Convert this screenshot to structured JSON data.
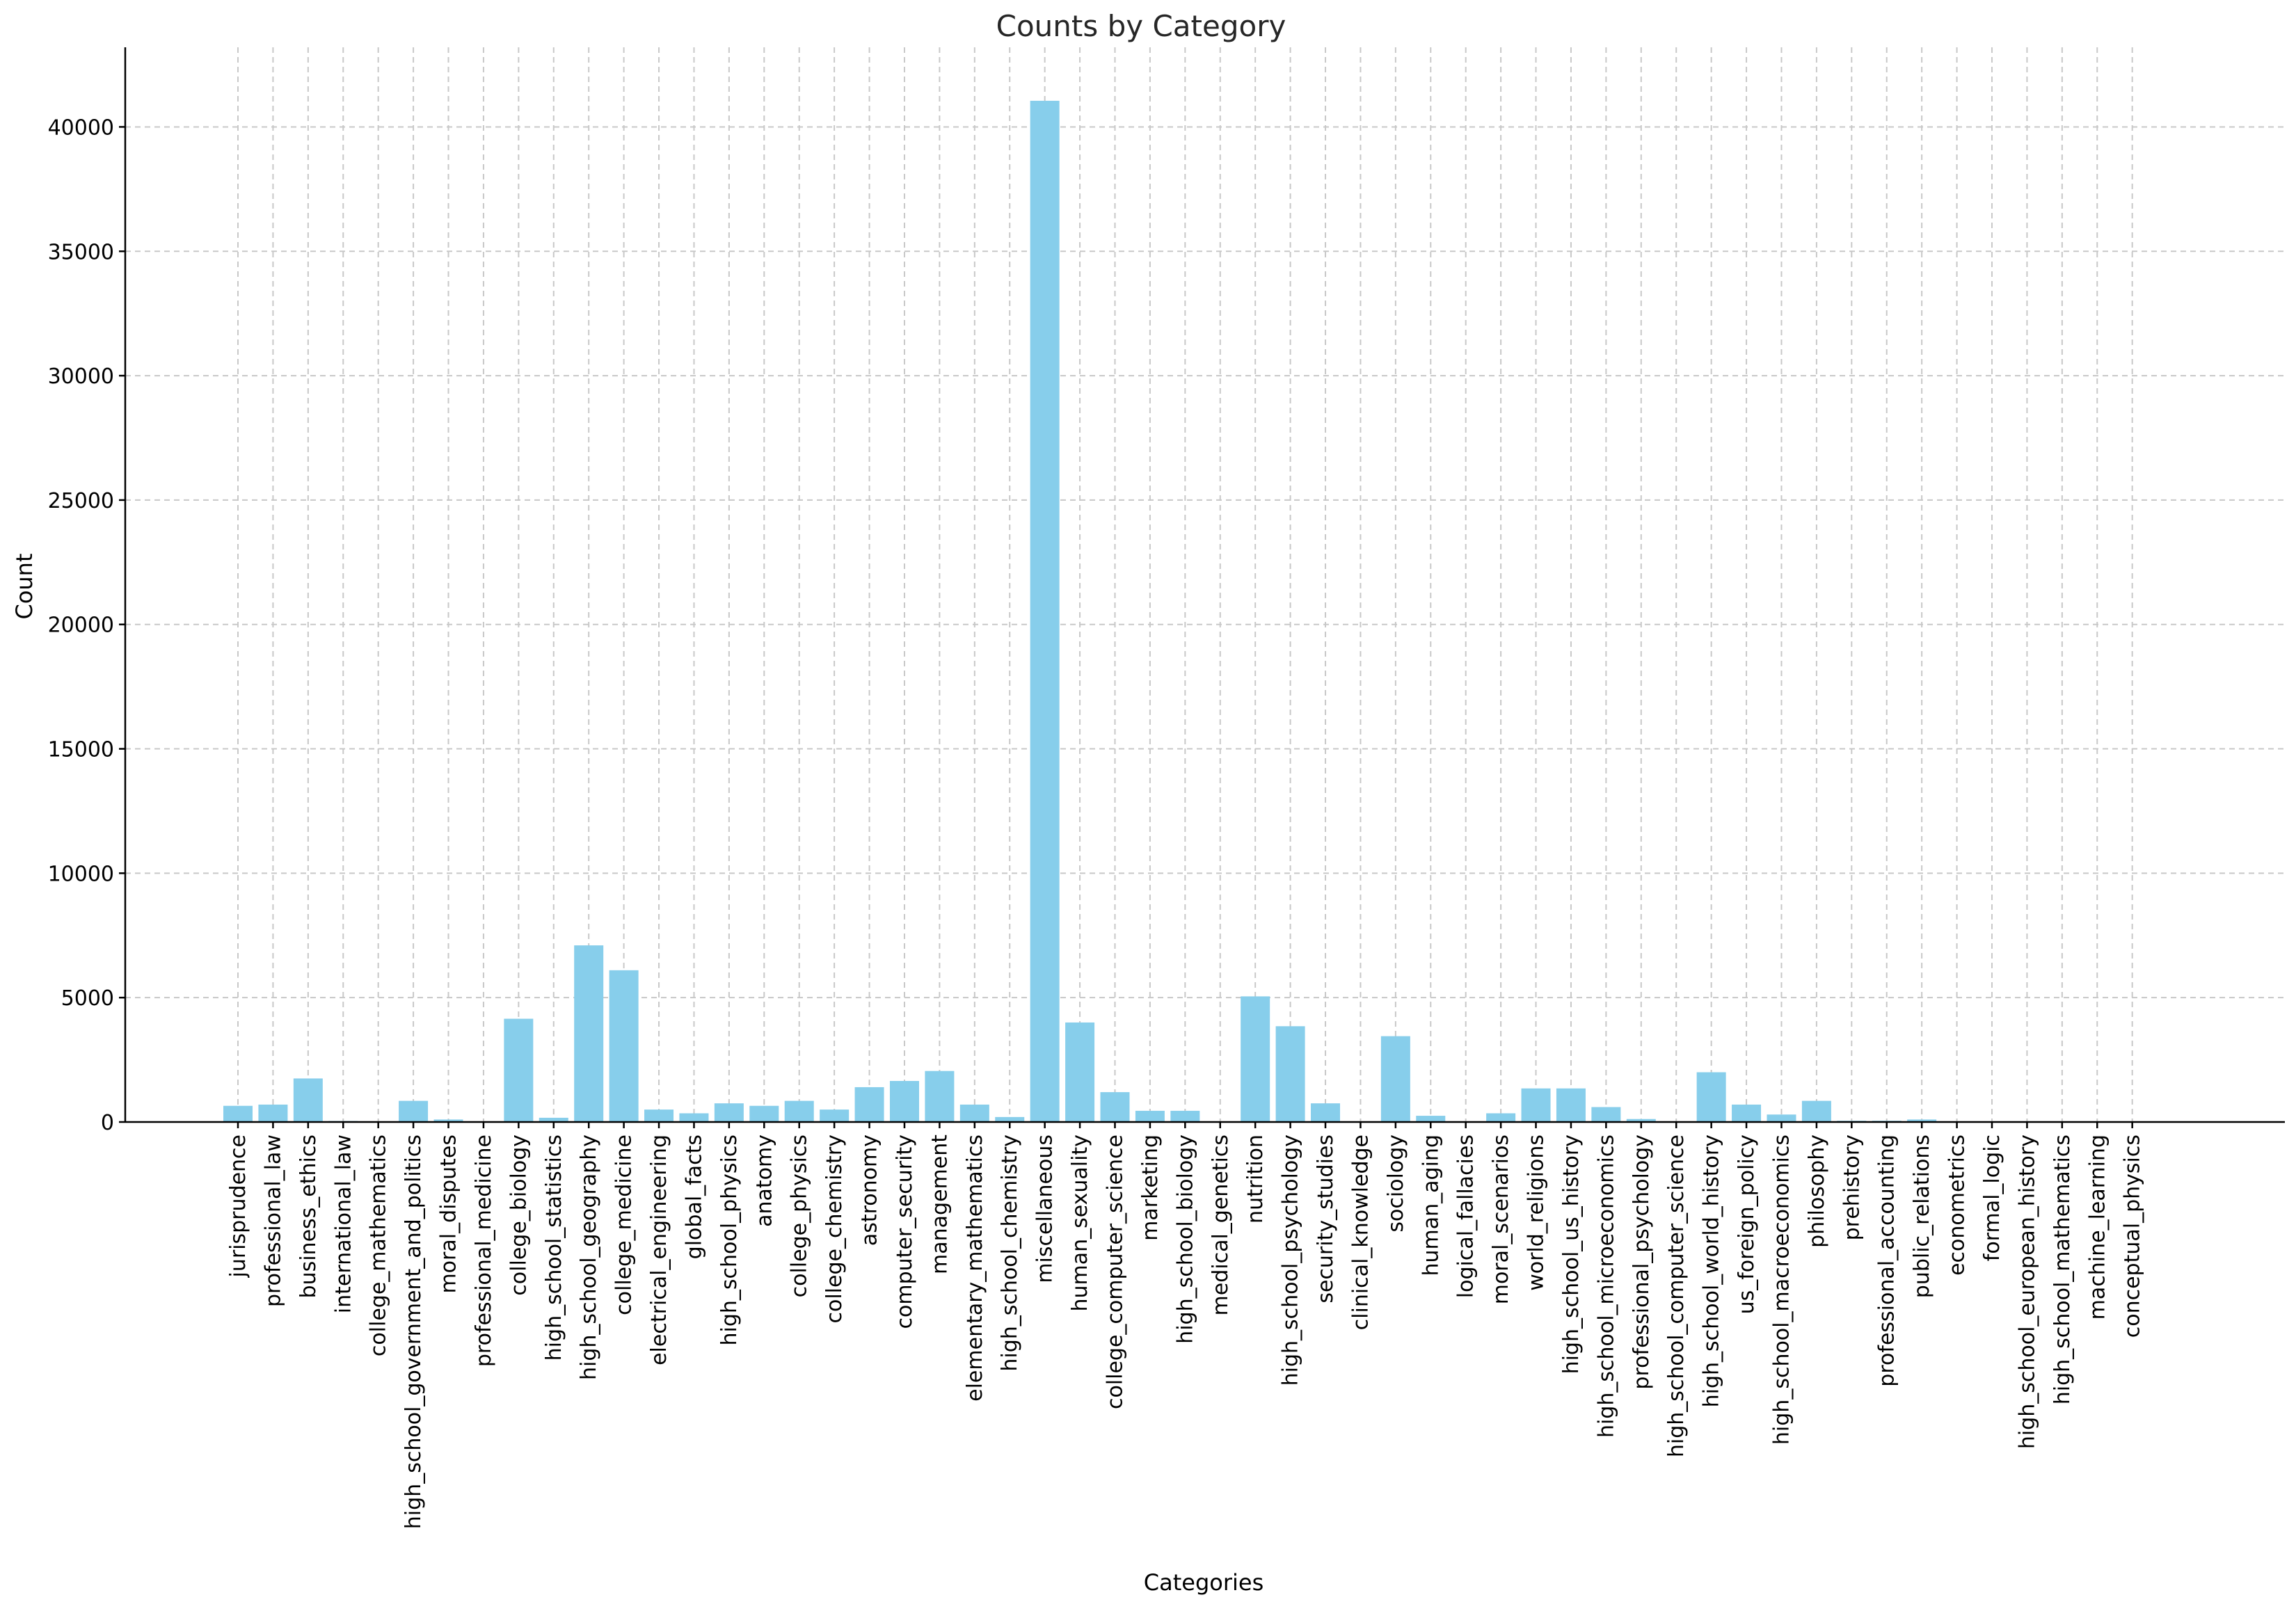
{
  "chart_data": {
    "type": "bar",
    "title": "Counts by Category",
    "xlabel": "Categories",
    "ylabel": "Count",
    "ylim": [
      0,
      43200
    ],
    "yticks": [
      0,
      5000,
      10000,
      15000,
      20000,
      25000,
      30000,
      35000,
      40000
    ],
    "grid": true,
    "bar_color": "#87ceeb",
    "categories": [
      "jurisprudence",
      "professional_law",
      "business_ethics",
      "international_law",
      "college_mathematics",
      "high_school_government_and_politics",
      "moral_disputes",
      "professional_medicine",
      "college_biology",
      "high_school_statistics",
      "high_school_geography",
      "college_medicine",
      "electrical_engineering",
      "global_facts",
      "high_school_physics",
      "anatomy",
      "college_physics",
      "college_chemistry",
      "astronomy",
      "computer_security",
      "management",
      "elementary_mathematics",
      "high_school_chemistry",
      "miscellaneous",
      "human_sexuality",
      "college_computer_science",
      "marketing",
      "high_school_biology",
      "medical_genetics",
      "nutrition",
      "high_school_psychology",
      "security_studies",
      "clinical_knowledge",
      "sociology",
      "human_aging",
      "logical_fallacies",
      "moral_scenarios",
      "world_religions",
      "high_school_us_history",
      "high_school_microeconomics",
      "professional_psychology",
      "high_school_computer_science",
      "high_school_world_history",
      "us_foreign_policy",
      "high_school_macroeconomics",
      "philosophy",
      "prehistory",
      "professional_accounting",
      "public_relations",
      "econometrics",
      "formal_logic",
      "high_school_european_history",
      "high_school_mathematics",
      "machine_learning",
      "conceptual_physics"
    ],
    "values": [
      650,
      700,
      1750,
      40,
      20,
      850,
      100,
      20,
      4150,
      170,
      7100,
      6100,
      500,
      350,
      750,
      650,
      850,
      500,
      1400,
      1650,
      2050,
      700,
      200,
      41050,
      4000,
      1200,
      450,
      450,
      10,
      5050,
      3850,
      750,
      20,
      3450,
      250,
      20,
      350,
      1350,
      1350,
      600,
      120,
      20,
      2000,
      700,
      300,
      850,
      50,
      50,
      100,
      20,
      10,
      10,
      10,
      10,
      10
    ]
  }
}
